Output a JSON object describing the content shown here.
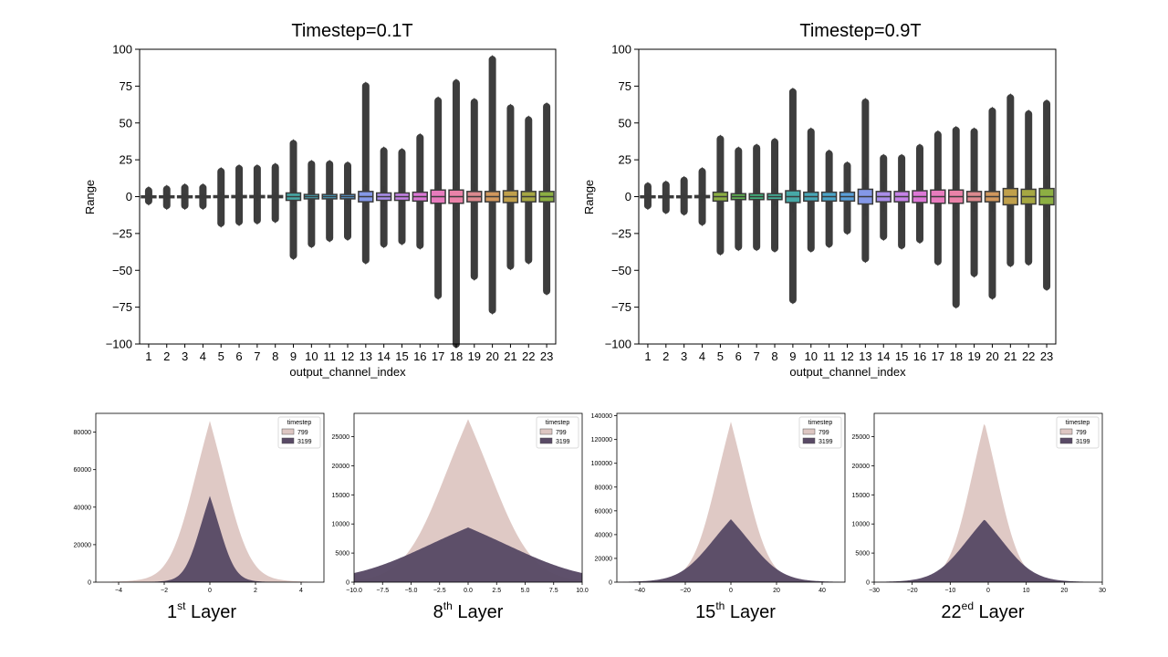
{
  "figure": {
    "colors": {
      "axis": "#000000",
      "box_edge": "#3a3a3a",
      "whisker": "#3a3a3a",
      "outlier": "#3d3d3d",
      "hist_799": "#ddc6c2",
      "hist_3199": "#594a66",
      "palette": [
        "#dc8a8f",
        "#d1975d",
        "#c0a04c",
        "#a6a743",
        "#8caf43",
        "#5fb153",
        "#43b17c",
        "#45ad96",
        "#47a9a7",
        "#48a7b7",
        "#4aa5c8",
        "#5aa0d9",
        "#8498e7",
        "#a98ee9",
        "#c582e6",
        "#dc78d6",
        "#e77bbd",
        "#ea82a8",
        "#dc8a8f",
        "#d1975d",
        "#c0a04c",
        "#a6a743",
        "#8caf43"
      ]
    }
  },
  "chart_data": [
    {
      "type": "boxplot",
      "title": "Timestep=0.1T",
      "xlabel": "output_channel_index",
      "ylabel": "Range",
      "ylim": [
        -100,
        100
      ],
      "yticks": [
        -100,
        -75,
        -50,
        -25,
        0,
        25,
        50,
        75,
        100
      ],
      "ytick_labels": [
        "−100",
        "−75",
        "−50",
        "−25",
        "0",
        "25",
        "50",
        "75",
        "100"
      ],
      "categories": [
        "1",
        "2",
        "3",
        "4",
        "5",
        "6",
        "7",
        "8",
        "9",
        "10",
        "11",
        "12",
        "13",
        "14",
        "15",
        "16",
        "17",
        "18",
        "19",
        "20",
        "21",
        "22",
        "23"
      ],
      "q1": [
        -0.5,
        -0.5,
        -0.5,
        -0.5,
        -0.6,
        -0.7,
        -0.7,
        -0.7,
        -2.5,
        -1.5,
        -1.5,
        -1.5,
        -3.5,
        -2.5,
        -2.5,
        -3,
        -4.5,
        -4.5,
        -3.5,
        -3.5,
        -4,
        -3.5,
        -3.5
      ],
      "median": [
        0,
        0,
        0,
        0,
        0,
        0,
        0,
        0,
        0,
        0,
        0,
        0,
        0,
        0,
        0,
        0,
        0,
        0,
        0,
        0,
        0,
        0,
        0
      ],
      "q3": [
        0.5,
        0.5,
        0.5,
        0.5,
        0.6,
        0.7,
        0.7,
        0.7,
        2.5,
        1.5,
        1.5,
        1.5,
        3.5,
        2.5,
        2.5,
        3,
        4.5,
        4.5,
        3.5,
        3.5,
        4,
        3.5,
        3.5
      ],
      "whisker_low": [
        -2,
        -2,
        -2,
        -2,
        -3,
        -3,
        -3,
        -3,
        -6,
        -5,
        -5,
        -5,
        -8,
        -7,
        -7,
        -8,
        -10,
        -10,
        -9,
        -9,
        -10,
        -9,
        -9
      ],
      "whisker_high": [
        2,
        2,
        2,
        2,
        3,
        3,
        3,
        3,
        6,
        5,
        5,
        5,
        8,
        7,
        7,
        8,
        10,
        10,
        9,
        9,
        10,
        9,
        9
      ],
      "outlier_min": [
        -3,
        -6,
        -6,
        -6,
        -18,
        -17,
        -16,
        -15,
        -40,
        -32,
        -28,
        -27,
        -43,
        -32,
        -30,
        -33,
        -67,
        -100,
        -54,
        -77,
        -47,
        -43,
        -64
      ],
      "outlier_max": [
        4,
        5,
        6,
        6,
        17,
        19,
        19,
        20,
        36,
        22,
        22,
        21,
        75,
        31,
        30,
        40,
        65,
        77,
        64,
        93,
        60,
        52,
        61
      ]
    },
    {
      "type": "boxplot",
      "title": "Timestep=0.9T",
      "xlabel": "output_channel_index",
      "ylabel": "Range",
      "ylim": [
        -100,
        100
      ],
      "yticks": [
        -100,
        -75,
        -50,
        -25,
        0,
        25,
        50,
        75,
        100
      ],
      "ytick_labels": [
        "−100",
        "−75",
        "−50",
        "−25",
        "0",
        "25",
        "50",
        "75",
        "100"
      ],
      "categories": [
        "1",
        "2",
        "3",
        "4",
        "5",
        "6",
        "7",
        "8",
        "9",
        "10",
        "11",
        "12",
        "13",
        "14",
        "15",
        "16",
        "17",
        "18",
        "19",
        "20",
        "21",
        "22",
        "23"
      ],
      "q1": [
        -0.5,
        -0.5,
        -0.5,
        -0.7,
        -3,
        -2,
        -2,
        -2,
        -4,
        -3,
        -3,
        -3,
        -5,
        -3.5,
        -3.5,
        -4,
        -4.5,
        -4.5,
        -3.5,
        -3.5,
        -5.5,
        -5,
        -5.5
      ],
      "median": [
        0,
        0,
        0,
        0,
        0,
        0,
        0,
        0,
        0,
        0,
        0,
        0,
        0,
        0,
        0,
        0,
        0,
        0,
        0,
        0,
        0,
        0,
        0
      ],
      "q3": [
        0.5,
        0.5,
        0.5,
        0.7,
        3,
        2,
        2,
        2,
        4,
        3,
        3,
        3,
        5,
        3.5,
        3.5,
        4,
        4.5,
        4.5,
        3.5,
        3.5,
        5.5,
        5,
        5.5
      ],
      "whisker_low": [
        -2,
        -2,
        -2,
        -3,
        -8,
        -6,
        -6,
        -6,
        -11,
        -9,
        -9,
        -9,
        -13,
        -10,
        -10,
        -11,
        -12,
        -12,
        -10,
        -10,
        -14,
        -13,
        -14
      ],
      "whisker_high": [
        2,
        2,
        2,
        3,
        8,
        6,
        6,
        6,
        11,
        9,
        9,
        9,
        13,
        10,
        10,
        11,
        12,
        12,
        10,
        10,
        14,
        13,
        14
      ],
      "outlier_min": [
        -6,
        -9,
        -10,
        -17,
        -37,
        -34,
        -34,
        -35,
        -70,
        -35,
        -32,
        -23,
        -42,
        -27,
        -33,
        -29,
        -44,
        -73,
        -52,
        -67,
        -45,
        -44,
        -61
      ],
      "outlier_max": [
        7,
        8,
        11,
        17,
        39,
        31,
        33,
        37,
        71,
        44,
        29,
        21,
        64,
        26,
        26,
        33,
        42,
        45,
        44,
        58,
        67,
        56,
        63
      ]
    },
    {
      "type": "histogram",
      "caption": "1st Layer",
      "caption_base": "1",
      "caption_sup": "st",
      "caption_rest": " Layer",
      "xlim": [
        -5,
        5
      ],
      "xticks": [
        -4,
        -2,
        0,
        2,
        4
      ],
      "xtick_labels": [
        "−4",
        "−2",
        "0",
        "2",
        "4"
      ],
      "ylim": [
        0,
        90000
      ],
      "yticks": [
        0,
        20000,
        40000,
        60000,
        80000
      ],
      "ytick_labels": [
        "0",
        "20000",
        "40000",
        "60000",
        "80000"
      ],
      "legend_title": "timestep",
      "legend": [
        "799",
        "3199"
      ],
      "series": [
        {
          "name": "799",
          "peak": 86000,
          "center": 0,
          "scale": 0.95
        },
        {
          "name": "3199",
          "peak": 46000,
          "center": 0,
          "scale": 0.6
        }
      ]
    },
    {
      "type": "histogram",
      "caption": "8th Layer",
      "caption_base": "8",
      "caption_sup": "th",
      "caption_rest": " Layer",
      "xlim": [
        -10,
        10
      ],
      "xticks": [
        -10,
        -7.5,
        -5,
        -2.5,
        0,
        2.5,
        5,
        7.5,
        10
      ],
      "xtick_labels": [
        "−10.0",
        "−7.5",
        "−5.0",
        "−2.5",
        "0.0",
        "2.5",
        "5.0",
        "7.5",
        "10.0"
      ],
      "ylim": [
        0,
        29000
      ],
      "yticks": [
        0,
        5000,
        10000,
        15000,
        20000,
        25000
      ],
      "ytick_labels": [
        "0",
        "5000",
        "10000",
        "15000",
        "20000",
        "25000"
      ],
      "legend_title": "timestep",
      "legend": [
        "799",
        "3199"
      ],
      "series": [
        {
          "name": "799",
          "peak": 28000,
          "center": 0,
          "scale": 3.0
        },
        {
          "name": "3199",
          "peak": 9400,
          "center": 0,
          "scale": 5.5
        }
      ]
    },
    {
      "type": "histogram",
      "caption": "15th Layer",
      "caption_base": "15",
      "caption_sup": "th",
      "caption_rest": " Layer",
      "xlim": [
        -50,
        50
      ],
      "xticks": [
        -40,
        -20,
        0,
        20,
        40
      ],
      "xtick_labels": [
        "−40",
        "−20",
        "0",
        "20",
        "40"
      ],
      "ylim": [
        0,
        142000
      ],
      "yticks": [
        0,
        20000,
        40000,
        60000,
        80000,
        100000,
        120000,
        140000
      ],
      "ytick_labels": [
        "0",
        "20000",
        "40000",
        "60000",
        "80000",
        "100000",
        "120000",
        "140000"
      ],
      "legend_title": "timestep",
      "legend": [
        "799",
        "3199"
      ],
      "series": [
        {
          "name": "799",
          "peak": 135000,
          "center": 0,
          "scale": 9
        },
        {
          "name": "3199",
          "peak": 53000,
          "center": 0,
          "scale": 12
        }
      ]
    },
    {
      "type": "histogram",
      "caption": "22ed Layer",
      "caption_base": "22",
      "caption_sup": "ed",
      "caption_rest": " Layer",
      "xlim": [
        -30,
        30
      ],
      "xticks": [
        -30,
        -20,
        -10,
        0,
        10,
        20,
        30
      ],
      "xtick_labels": [
        "−30",
        "−20",
        "−10",
        "0",
        "10",
        "20",
        "30"
      ],
      "ylim": [
        0,
        29000
      ],
      "yticks": [
        0,
        5000,
        10000,
        15000,
        20000,
        25000
      ],
      "ytick_labels": [
        "0",
        "5000",
        "10000",
        "15000",
        "20000",
        "25000"
      ],
      "legend_title": "timestep",
      "legend": [
        "799",
        "3199"
      ],
      "series": [
        {
          "name": "799",
          "peak": 27500,
          "center": -1,
          "scale": 5
        },
        {
          "name": "3199",
          "peak": 10800,
          "center": -1,
          "scale": 7
        }
      ]
    }
  ]
}
